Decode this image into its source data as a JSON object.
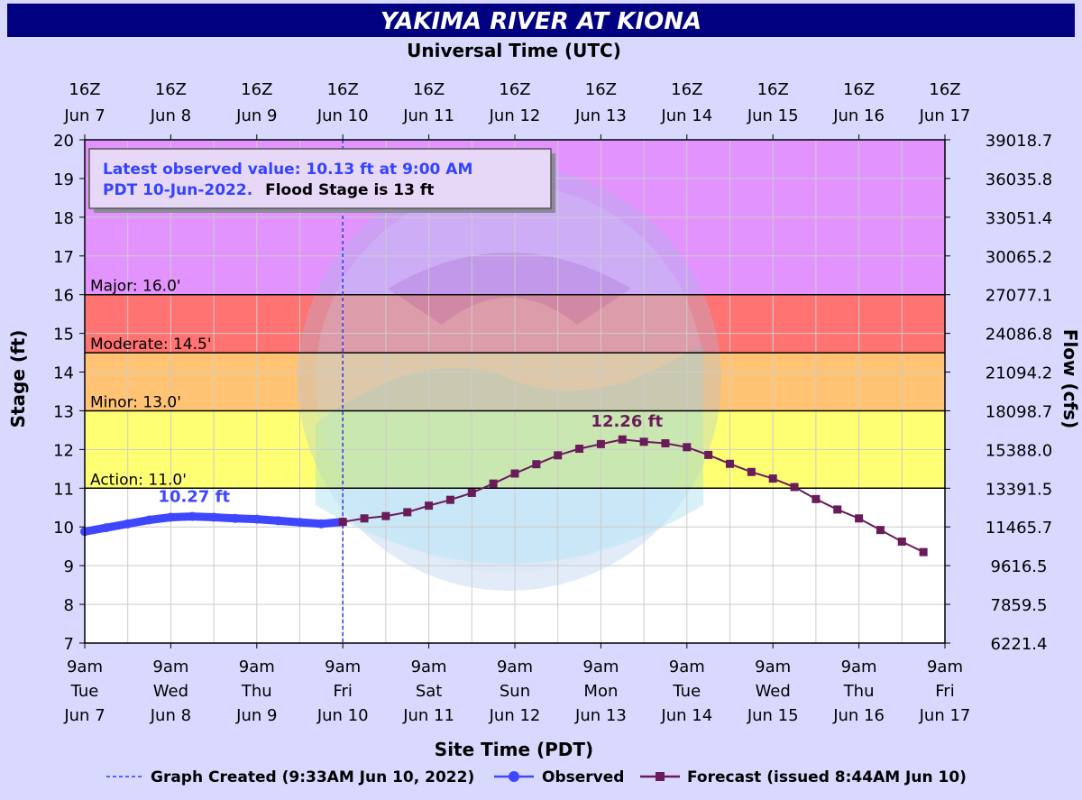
{
  "colors": {
    "background": "#d9d9ff",
    "title_bar": "#000080",
    "title_text": "#ffffff",
    "major": "#e293fd",
    "moderate": "#ff7373",
    "minor": "#ffc373",
    "action": "#ffff73",
    "normal": "#ffffff",
    "grid": "#cccccc",
    "observed": "#3f46ff",
    "forecast": "#6a1b5a",
    "created_line": "#3333ff"
  },
  "chart_data": {
    "type": "line",
    "title": "YAKIMA RIVER AT KIONA",
    "top_axis_title": "Universal Time (UTC)",
    "xlabel": "Site Time (PDT)",
    "ylabel": "Stage (ft)",
    "y2label": "Flow (cfs)",
    "ylim": [
      7,
      20
    ],
    "xlim": [
      0,
      240
    ],
    "grid": true,
    "y_ticks": [
      "7",
      "8",
      "9",
      "10",
      "11",
      "12",
      "13",
      "14",
      "15",
      "16",
      "17",
      "18",
      "19",
      "20"
    ],
    "flow_ticks": [
      "6221.4",
      "7859.5",
      "9616.5",
      "11465.7",
      "13391.5",
      "15388.0",
      "18098.7",
      "21094.2",
      "24086.8",
      "27077.1",
      "30065.2",
      "33051.4",
      "36035.8",
      "39018.7"
    ],
    "bottom_ticks": [
      {
        "time": "9am",
        "day": "Tue",
        "date": "Jun 7"
      },
      {
        "time": "9am",
        "day": "Wed",
        "date": "Jun 8"
      },
      {
        "time": "9am",
        "day": "Thu",
        "date": "Jun 9"
      },
      {
        "time": "9am",
        "day": "Fri",
        "date": "Jun 10"
      },
      {
        "time": "9am",
        "day": "Sat",
        "date": "Jun 11"
      },
      {
        "time": "9am",
        "day": "Sun",
        "date": "Jun 12"
      },
      {
        "time": "9am",
        "day": "Mon",
        "date": "Jun 13"
      },
      {
        "time": "9am",
        "day": "Tue",
        "date": "Jun 14"
      },
      {
        "time": "9am",
        "day": "Wed",
        "date": "Jun 15"
      },
      {
        "time": "9am",
        "day": "Thu",
        "date": "Jun 16"
      },
      {
        "time": "9am",
        "day": "Fri",
        "date": "Jun 17"
      }
    ],
    "top_ticks": [
      {
        "time": "16Z",
        "date": "Jun 7"
      },
      {
        "time": "16Z",
        "date": "Jun 8"
      },
      {
        "time": "16Z",
        "date": "Jun 9"
      },
      {
        "time": "16Z",
        "date": "Jun 10"
      },
      {
        "time": "16Z",
        "date": "Jun 11"
      },
      {
        "time": "16Z",
        "date": "Jun 12"
      },
      {
        "time": "16Z",
        "date": "Jun 13"
      },
      {
        "time": "16Z",
        "date": "Jun 14"
      },
      {
        "time": "16Z",
        "date": "Jun 15"
      },
      {
        "time": "16Z",
        "date": "Jun 16"
      },
      {
        "time": "16Z",
        "date": "Jun 17"
      }
    ],
    "flood_categories": [
      {
        "name": "Major",
        "label": "Major: 16.0'",
        "from": 16.0,
        "to": 20
      },
      {
        "name": "Moderate",
        "label": "Moderate: 14.5'",
        "from": 14.5,
        "to": 16.0
      },
      {
        "name": "Minor",
        "label": "Minor: 13.0'",
        "from": 13.0,
        "to": 14.5
      },
      {
        "name": "Action",
        "label": "Action: 11.0'",
        "from": 11.0,
        "to": 13.0
      }
    ],
    "series": [
      {
        "name": "Observed",
        "x": [
          0,
          6,
          12,
          18,
          24,
          30,
          36,
          42,
          48,
          54,
          60,
          66,
          72
        ],
        "values": [
          9.88,
          9.98,
          10.08,
          10.18,
          10.25,
          10.27,
          10.25,
          10.22,
          10.2,
          10.16,
          10.12,
          10.08,
          10.13
        ]
      },
      {
        "name": "Forecast (issued 8:44AM Jun 10)",
        "x": [
          72,
          78,
          84,
          90,
          96,
          102,
          108,
          114,
          120,
          126,
          132,
          138,
          144,
          150,
          156,
          162,
          168,
          174,
          180,
          186,
          192,
          198,
          204,
          210,
          216,
          222,
          228,
          234
        ],
        "values": [
          10.13,
          10.22,
          10.28,
          10.38,
          10.55,
          10.7,
          10.88,
          11.12,
          11.38,
          11.62,
          11.85,
          12.02,
          12.14,
          12.26,
          12.2,
          12.16,
          12.06,
          11.86,
          11.63,
          11.42,
          11.25,
          11.03,
          10.72,
          10.45,
          10.22,
          9.92,
          9.62,
          9.35
        ]
      }
    ],
    "annotations": {
      "observed_peak_label": "10.27 ft",
      "forecast_peak_label": "12.26 ft",
      "observed_peak": {
        "x": 30,
        "y": 10.27
      },
      "forecast_peak": {
        "x": 150,
        "y": 12.26
      },
      "graph_created_x": 72
    },
    "info_box": {
      "part1": "Latest observed value: 10.13 ft at 9:00 AM",
      "part2": "PDT 10-Jun-2022.",
      "part3": "Flood Stage is 13 ft"
    },
    "legend": {
      "created": "Graph Created (9:33AM Jun 10, 2022)",
      "observed": "Observed",
      "forecast": "Forecast (issued 8:44AM Jun 10)"
    }
  }
}
